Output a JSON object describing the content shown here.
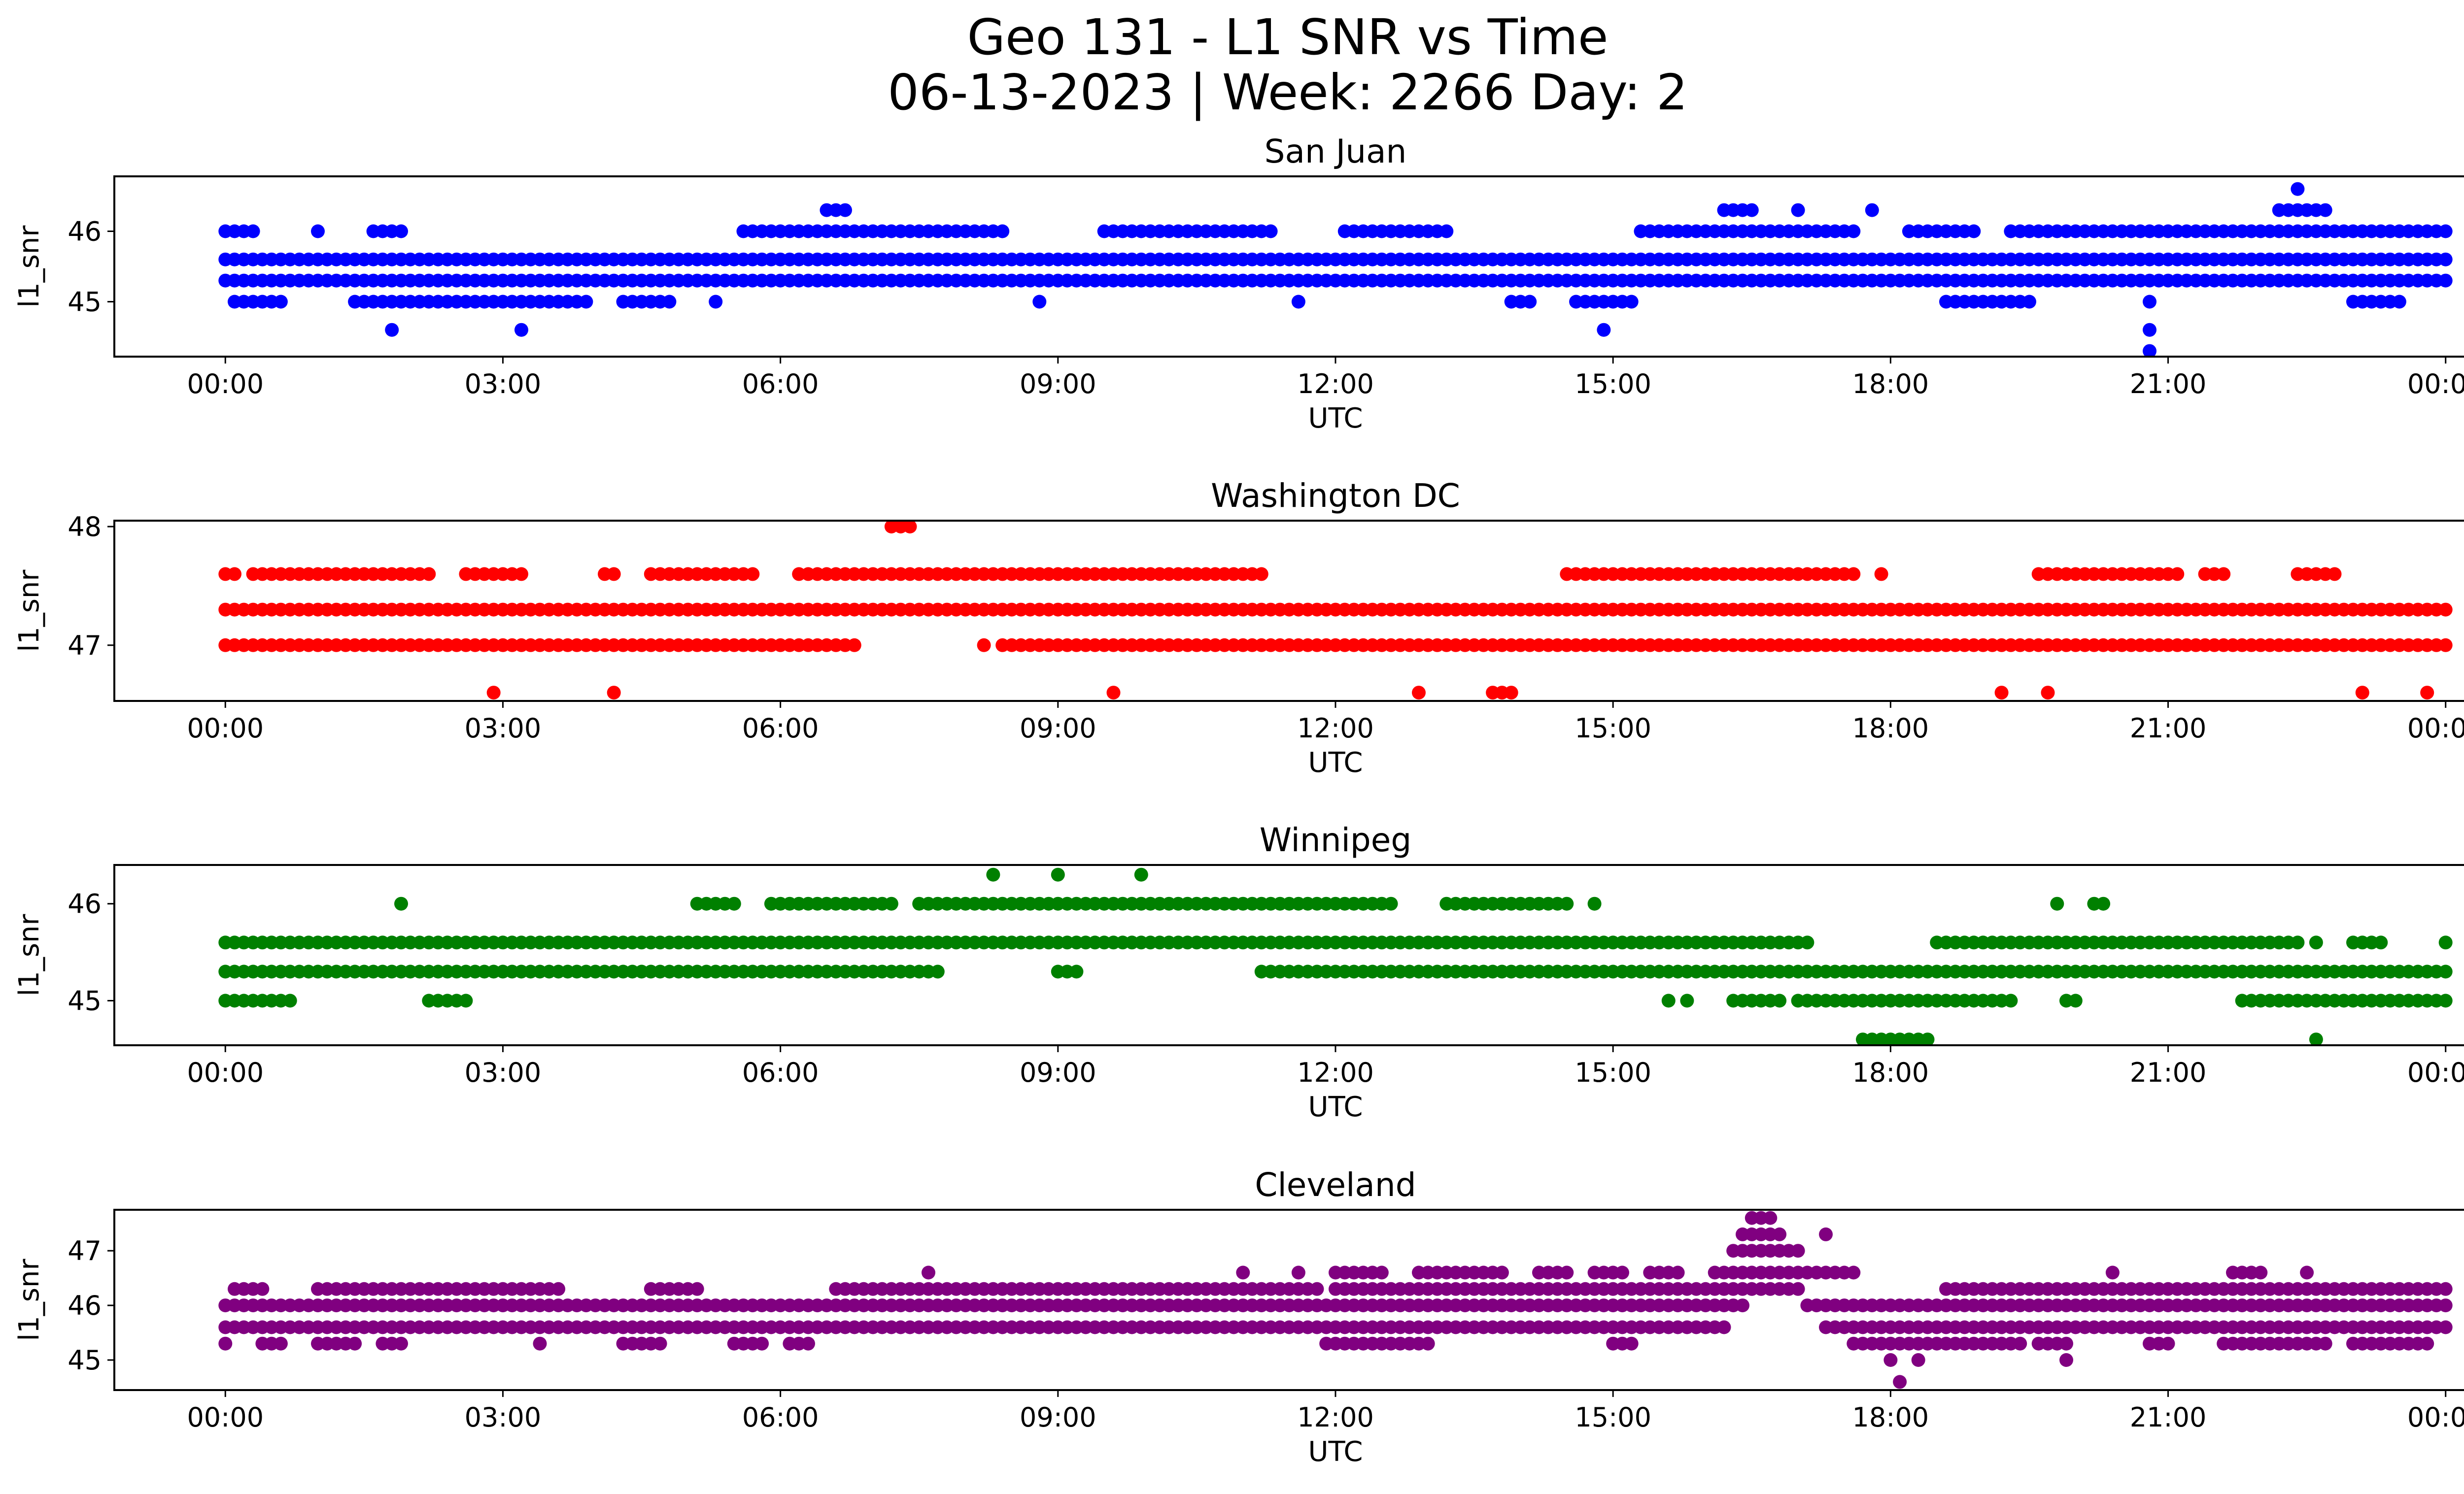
{
  "figure": {
    "title_line1": "Geo 131 - L1 SNR vs Time",
    "title_line2": "06-13-2023 | Week: 2266 Day: 2"
  },
  "chart_data": [
    {
      "type": "scatter",
      "title": "San Juan",
      "xlabel": "UTC",
      "ylabel": "l1_snr",
      "color": "#0000ff",
      "x_ticks": [
        "00:00",
        "03:00",
        "06:00",
        "09:00",
        "12:00",
        "15:00",
        "18:00",
        "21:00",
        "00:00"
      ],
      "x_range_hours": [
        -1.2,
        25.2
      ],
      "ylim": [
        44.22,
        46.78
      ],
      "y_ticks": [
        45,
        46
      ],
      "series": [
        {
          "y": 45.6,
          "segments": [
            [
              0.0,
              24.0
            ]
          ]
        },
        {
          "y": 45.3,
          "segments": [
            [
              0.0,
              7.7
            ],
            [
              7.8,
              24.0
            ]
          ]
        },
        {
          "y": 46.0,
          "segments": [
            [
              0.0,
              0.3
            ],
            [
              1.0,
              1.0
            ],
            [
              1.6,
              1.9
            ],
            [
              5.6,
              8.4
            ],
            [
              9.5,
              11.3
            ],
            [
              12.1,
              13.2
            ],
            [
              15.3,
              17.6
            ],
            [
              18.2,
              18.9
            ],
            [
              19.3,
              24.0
            ]
          ]
        },
        {
          "y": 45.0,
          "segments": [
            [
              0.1,
              0.6
            ],
            [
              1.4,
              3.9
            ],
            [
              4.3,
              4.8
            ],
            [
              5.3,
              5.3
            ],
            [
              8.8,
              8.8
            ],
            [
              11.6,
              11.6
            ],
            [
              13.9,
              14.1
            ],
            [
              14.6,
              15.2
            ],
            [
              18.6,
              19.5
            ],
            [
              20.8,
              20.8
            ],
            [
              23.0,
              23.5
            ]
          ]
        },
        {
          "y": 46.3,
          "segments": [
            [
              6.5,
              6.7
            ],
            [
              16.2,
              16.5
            ],
            [
              17.0,
              17.0
            ],
            [
              17.8,
              17.8
            ],
            [
              22.2,
              22.7
            ]
          ]
        },
        {
          "y": 44.6,
          "segments": [
            [
              1.8,
              1.8
            ],
            [
              3.2,
              3.2
            ],
            [
              14.9,
              14.9
            ],
            [
              20.8,
              20.8
            ]
          ]
        },
        {
          "y": 44.3,
          "segments": [
            [
              20.8,
              20.8
            ]
          ]
        },
        {
          "y": 46.6,
          "segments": [
            [
              22.4,
              22.4
            ]
          ]
        }
      ]
    },
    {
      "type": "scatter",
      "title": "Washington DC",
      "xlabel": "UTC",
      "ylabel": "l1_snr",
      "color": "#ff0000",
      "x_ticks": [
        "00:00",
        "03:00",
        "06:00",
        "09:00",
        "12:00",
        "15:00",
        "18:00",
        "21:00",
        "00:00"
      ],
      "x_range_hours": [
        -1.2,
        25.2
      ],
      "ylim": [
        46.53,
        48.05
      ],
      "y_ticks": [
        47,
        48
      ],
      "series": [
        {
          "y": 47.3,
          "segments": [
            [
              0.0,
              24.0
            ]
          ]
        },
        {
          "y": 47.0,
          "segments": [
            [
              0.0,
              6.8
            ],
            [
              8.2,
              8.2
            ],
            [
              8.4,
              24.0
            ]
          ]
        },
        {
          "y": 47.6,
          "segments": [
            [
              0.0,
              0.1
            ],
            [
              0.3,
              2.2
            ],
            [
              2.6,
              3.2
            ],
            [
              4.1,
              4.2
            ],
            [
              4.6,
              5.7
            ],
            [
              6.2,
              11.2
            ],
            [
              14.5,
              17.6
            ],
            [
              17.9,
              17.9
            ],
            [
              19.6,
              21.1
            ],
            [
              21.4,
              21.6
            ],
            [
              22.4,
              22.8
            ]
          ]
        },
        {
          "y": 46.6,
          "segments": [
            [
              2.9,
              2.9
            ],
            [
              4.2,
              4.2
            ],
            [
              9.6,
              9.6
            ],
            [
              12.9,
              12.9
            ],
            [
              13.7,
              13.9
            ],
            [
              19.2,
              19.2
            ],
            [
              19.7,
              19.7
            ],
            [
              23.1,
              23.1
            ],
            [
              23.8,
              23.8
            ]
          ]
        },
        {
          "y": 48.0,
          "segments": [
            [
              7.2,
              7.4
            ]
          ]
        }
      ]
    },
    {
      "type": "scatter",
      "title": "Winnipeg",
      "xlabel": "UTC",
      "ylabel": "l1_snr",
      "color": "#008000",
      "x_ticks": [
        "00:00",
        "03:00",
        "06:00",
        "09:00",
        "12:00",
        "15:00",
        "18:00",
        "21:00",
        "00:00"
      ],
      "x_range_hours": [
        -1.2,
        25.2
      ],
      "ylim": [
        44.54,
        46.4
      ],
      "y_ticks": [
        45,
        46
      ],
      "series": [
        {
          "y": 45.3,
          "segments": [
            [
              0.0,
              6.1
            ],
            [
              6.2,
              7.7
            ],
            [
              9.0,
              9.2
            ],
            [
              11.2,
              24.0
            ]
          ]
        },
        {
          "y": 45.6,
          "segments": [
            [
              0.0,
              17.1
            ],
            [
              18.5,
              22.4
            ],
            [
              22.6,
              22.6
            ],
            [
              23.0,
              23.3
            ],
            [
              24.0,
              24.0
            ]
          ]
        },
        {
          "y": 45.0,
          "segments": [
            [
              0.0,
              0.7
            ],
            [
              2.2,
              2.5
            ],
            [
              2.6,
              2.6
            ],
            [
              15.6,
              15.6
            ],
            [
              15.8,
              15.8
            ],
            [
              16.3,
              16.8
            ],
            [
              17.0,
              19.3
            ],
            [
              19.9,
              20.0
            ],
            [
              21.8,
              24.0
            ]
          ]
        },
        {
          "y": 46.0,
          "segments": [
            [
              1.9,
              1.9
            ],
            [
              5.1,
              5.5
            ],
            [
              5.9,
              6.7
            ],
            [
              6.8,
              7.2
            ],
            [
              7.5,
              12.6
            ],
            [
              13.2,
              14.5
            ],
            [
              14.8,
              14.8
            ],
            [
              19.8,
              19.8
            ],
            [
              20.2,
              20.3
            ]
          ]
        },
        {
          "y": 46.3,
          "segments": [
            [
              8.3,
              8.3
            ],
            [
              9.0,
              9.0
            ],
            [
              9.9,
              9.9
            ]
          ]
        },
        {
          "y": 44.6,
          "segments": [
            [
              17.7,
              18.4
            ],
            [
              22.6,
              22.6
            ]
          ]
        }
      ]
    },
    {
      "type": "scatter",
      "title": "Cleveland",
      "xlabel": "UTC",
      "ylabel": "l1_snr",
      "color": "#800080",
      "x_ticks": [
        "00:00",
        "03:00",
        "06:00",
        "09:00",
        "12:00",
        "15:00",
        "18:00",
        "21:00",
        "00:00"
      ],
      "x_range_hours": [
        -1.2,
        25.2
      ],
      "ylim": [
        44.45,
        47.75
      ],
      "y_ticks": [
        45,
        46,
        47
      ],
      "series": [
        {
          "y": 46.0,
          "segments": [
            [
              0.0,
              16.4
            ],
            [
              17.1,
              24.0
            ]
          ]
        },
        {
          "y": 45.6,
          "segments": [
            [
              0.0,
              16.2
            ],
            [
              17.3,
              24.0
            ]
          ]
        },
        {
          "y": 46.3,
          "segments": [
            [
              0.1,
              0.4
            ],
            [
              1.0,
              3.6
            ],
            [
              4.6,
              5.1
            ],
            [
              6.6,
              11.8
            ],
            [
              12.0,
              17.0
            ],
            [
              18.6,
              24.0
            ]
          ]
        },
        {
          "y": 45.3,
          "segments": [
            [
              0.0,
              0.0
            ],
            [
              0.4,
              0.6
            ],
            [
              1.0,
              1.4
            ],
            [
              1.7,
              1.9
            ],
            [
              3.4,
              3.4
            ],
            [
              4.3,
              4.7
            ],
            [
              5.5,
              5.8
            ],
            [
              6.1,
              6.3
            ],
            [
              11.9,
              13.0
            ],
            [
              15.0,
              15.2
            ],
            [
              17.6,
              19.4
            ],
            [
              19.6,
              19.9
            ],
            [
              20.8,
              21.0
            ],
            [
              21.6,
              22.7
            ],
            [
              23.0,
              23.8
            ]
          ]
        },
        {
          "y": 46.6,
          "segments": [
            [
              7.6,
              7.6
            ],
            [
              11.0,
              11.0
            ],
            [
              11.6,
              11.6
            ],
            [
              12.0,
              12.5
            ],
            [
              12.9,
              13.8
            ],
            [
              14.2,
              14.5
            ],
            [
              14.8,
              15.1
            ],
            [
              15.4,
              15.7
            ],
            [
              16.1,
              17.6
            ],
            [
              20.4,
              20.4
            ],
            [
              21.7,
              22.0
            ],
            [
              22.5,
              22.5
            ]
          ]
        },
        {
          "y": 47.0,
          "segments": [
            [
              16.3,
              17.0
            ]
          ]
        },
        {
          "y": 47.3,
          "segments": [
            [
              16.4,
              16.8
            ],
            [
              17.3,
              17.3
            ]
          ]
        },
        {
          "y": 47.6,
          "segments": [
            [
              16.5,
              16.7
            ]
          ]
        },
        {
          "y": 45.0,
          "segments": [
            [
              18.0,
              18.0
            ],
            [
              18.3,
              18.3
            ],
            [
              19.9,
              19.9
            ]
          ]
        },
        {
          "y": 44.6,
          "segments": [
            [
              18.1,
              18.1
            ]
          ]
        }
      ]
    }
  ]
}
